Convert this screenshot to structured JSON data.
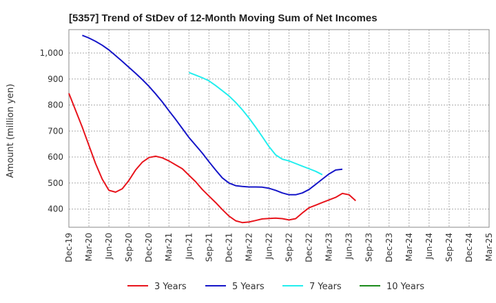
{
  "chart_data": {
    "type": "line",
    "title": "[5357]  Trend of StDev of 12-Month Moving Sum of Net Incomes",
    "xlabel": "",
    "ylabel": "Amount (million yen)",
    "ylim": [
      330,
      1090
    ],
    "yticks": [
      400,
      500,
      600,
      700,
      800,
      900,
      1000
    ],
    "ytick_labels": [
      "400",
      "500",
      "600",
      "700",
      "800",
      "900",
      "1,000"
    ],
    "x_categories": [
      "Dec-19",
      "Mar-20",
      "Jun-20",
      "Sep-20",
      "Dec-20",
      "Mar-21",
      "Jun-21",
      "Sep-21",
      "Dec-21",
      "Mar-22",
      "Jun-22",
      "Sep-22",
      "Dec-22",
      "Mar-23",
      "Jun-23",
      "Sep-23",
      "Dec-23",
      "Mar-24",
      "Jun-24",
      "Sep-24",
      "Dec-24",
      "Mar-25"
    ],
    "grid": true,
    "legend_position": "bottom",
    "series": [
      {
        "name": "3 Years",
        "color": "#e8141c",
        "start_index": 0,
        "values": [
          845,
          780,
          715,
          645,
          575,
          515,
          472,
          465,
          478,
          510,
          550,
          580,
          598,
          603,
          597,
          585,
          570,
          555,
          530,
          505,
          475,
          450,
          425,
          398,
          373,
          355,
          348,
          350,
          356,
          362,
          364,
          365,
          363,
          358,
          363,
          385,
          405,
          415,
          425,
          435,
          445,
          460,
          455,
          432
        ]
      },
      {
        "name": "5 Years",
        "color": "#1515c8",
        "start_index": 2,
        "values": [
          1068,
          1058,
          1045,
          1030,
          1012,
          990,
          968,
          945,
          922,
          898,
          872,
          843,
          812,
          778,
          745,
          710,
          675,
          645,
          615,
          582,
          550,
          520,
          500,
          490,
          487,
          485,
          485,
          484,
          480,
          472,
          462,
          455,
          455,
          462,
          475,
          495,
          515,
          535,
          550,
          553
        ]
      },
      {
        "name": "7 Years",
        "color": "#22eeee",
        "start_index": 18,
        "values": [
          925,
          915,
          905,
          893,
          875,
          855,
          835,
          810,
          782,
          750,
          715,
          678,
          640,
          608,
          592,
          585,
          575,
          565,
          555,
          545,
          532
        ]
      },
      {
        "name": "10 Years",
        "color": "#1a8a1a",
        "start_index": 0,
        "values": []
      }
    ]
  }
}
